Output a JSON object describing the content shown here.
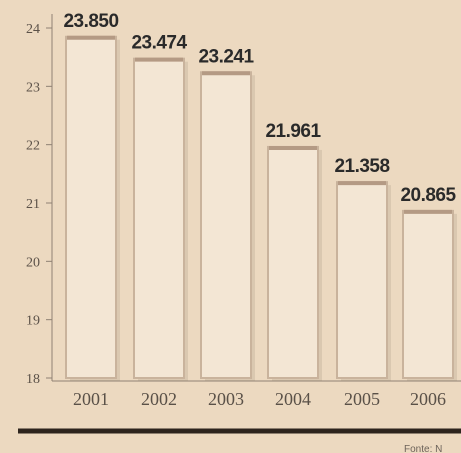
{
  "chart_data": {
    "type": "bar",
    "categories": [
      "2001",
      "2002",
      "2003",
      "2004",
      "2005",
      "2006"
    ],
    "values": [
      23.85,
      23.474,
      23.241,
      21.961,
      21.358,
      20.865
    ],
    "value_labels": [
      "23.850",
      "23.474",
      "23.241",
      "21.961",
      "21.358",
      "20.865"
    ],
    "y_ticks": [
      18,
      19,
      20,
      21,
      22,
      23,
      24
    ],
    "ylim": [
      18,
      24
    ],
    "grid": false,
    "source_fragment": "Fonte: N",
    "colors": {
      "background": "#ecd9c0",
      "bar_fill": "#f3e6d4",
      "bar_stroke": "#c9b39c",
      "bar_shadow": "#8c7a68",
      "axis": "#8f8173",
      "bottom_rule": "#2d241d"
    }
  }
}
